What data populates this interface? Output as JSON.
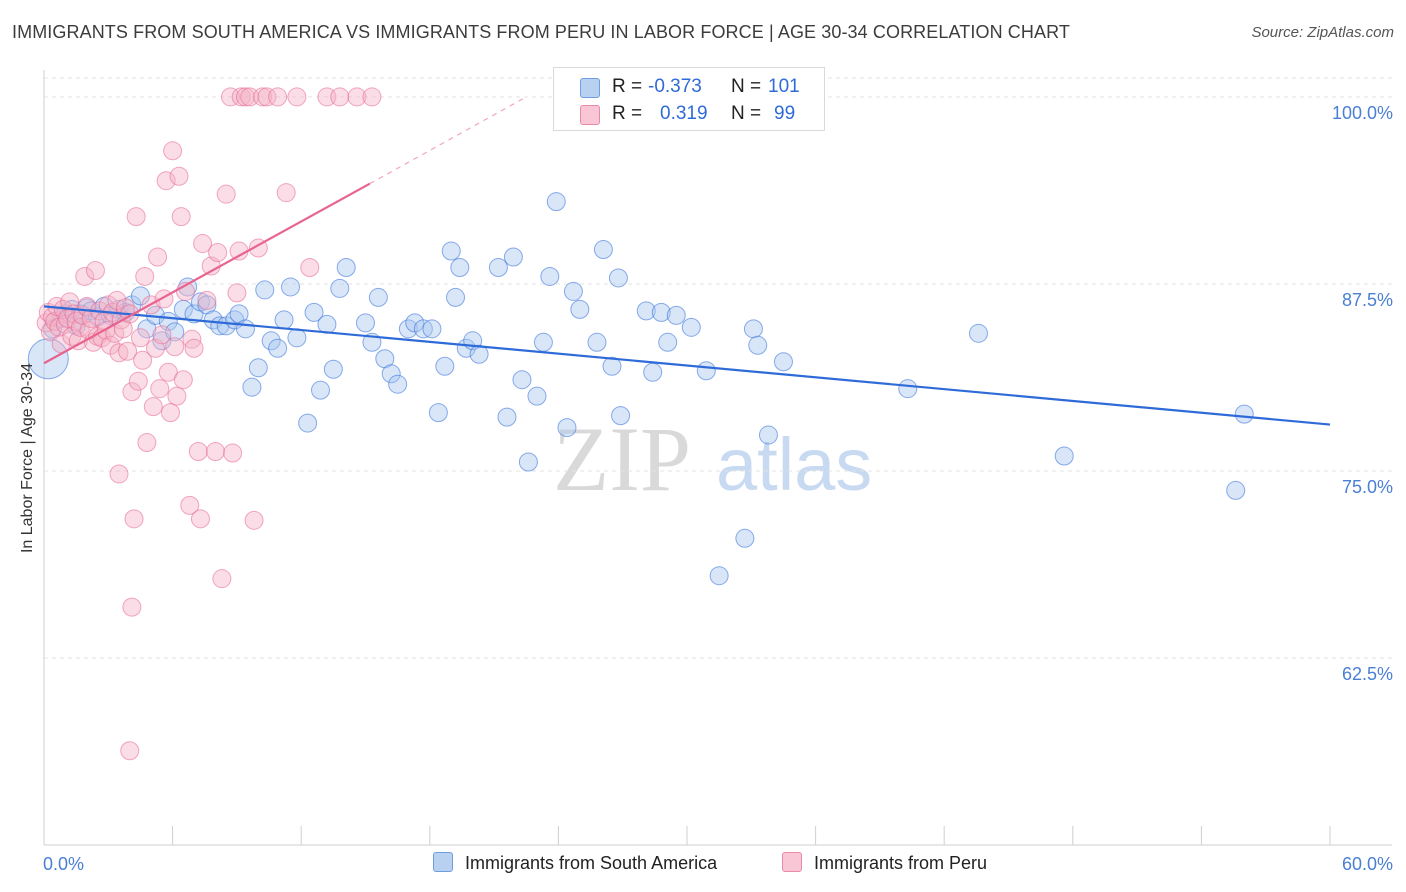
{
  "title": "IMMIGRANTS FROM SOUTH AMERICA VS IMMIGRANTS FROM PERU IN LABOR FORCE | AGE 30-34 CORRELATION CHART",
  "source": "Source: ZipAtlas.com",
  "watermark": {
    "zip": "ZIP",
    "atlas": "atlas"
  },
  "colors": {
    "blue": "#2f6bd8",
    "blue_fill": "#a9c8ef",
    "pink": "#e8648f",
    "pink_fill": "#f4b3c7",
    "axis_label": "#4a7fd4"
  },
  "legend": {
    "rows": [
      {
        "r_label": "R =",
        "r_value": "-0.373",
        "n_label": "N =",
        "n_value": "101"
      },
      {
        "r_label": "R =",
        "r_value": "0.319",
        "n_label": "N =",
        "n_value": "99"
      }
    ]
  },
  "bottom_legend": {
    "series1": "Immigrants from South America",
    "series2": "Immigrants from Peru"
  },
  "chart_data": {
    "type": "scatter",
    "ylabel": "In Labor Force | Age 30-34",
    "xlim": [
      0,
      60
    ],
    "ylim": [
      50,
      101.8
    ],
    "x_tick_labels": [
      "0.0%",
      "60.0%"
    ],
    "y_ticks": [
      62.5,
      75.0,
      87.5,
      100.0
    ],
    "y_tick_labels": [
      "62.5%",
      "75.0%",
      "87.5%",
      "100.0%"
    ],
    "grid": true,
    "legend_position": "top-center",
    "series": [
      {
        "name": "Immigrants from South America",
        "r": -0.373,
        "n": 101,
        "trend": {
          "x": [
            0,
            60
          ],
          "y": [
            86.0,
            78.1
          ]
        },
        "points": [
          [
            0.2,
            82.5
          ],
          [
            0.4,
            84.5
          ],
          [
            0.8,
            85.2
          ],
          [
            1.0,
            85.5
          ],
          [
            1.3,
            85.8
          ],
          [
            1.5,
            84.7
          ],
          [
            1.7,
            85.5
          ],
          [
            2.0,
            85.9
          ],
          [
            2.2,
            85.7
          ],
          [
            2.5,
            85.3
          ],
          [
            2.8,
            86.0
          ],
          [
            3.1,
            85.4
          ],
          [
            3.5,
            85.8
          ],
          [
            3.8,
            85.6
          ],
          [
            4.1,
            86.1
          ],
          [
            4.5,
            86.7
          ],
          [
            4.8,
            84.5
          ],
          [
            5.2,
            85.4
          ],
          [
            5.5,
            83.7
          ],
          [
            5.8,
            85.0
          ],
          [
            6.1,
            84.3
          ],
          [
            6.5,
            85.8
          ],
          [
            6.7,
            87.3
          ],
          [
            7.0,
            85.5
          ],
          [
            7.3,
            86.3
          ],
          [
            7.6,
            86.1
          ],
          [
            7.9,
            85.1
          ],
          [
            8.2,
            84.7
          ],
          [
            8.5,
            84.7
          ],
          [
            8.9,
            85.1
          ],
          [
            9.1,
            85.5
          ],
          [
            9.4,
            84.5
          ],
          [
            9.7,
            80.6
          ],
          [
            10.0,
            81.9
          ],
          [
            10.3,
            87.1
          ],
          [
            10.6,
            83.7
          ],
          [
            10.9,
            83.2
          ],
          [
            11.2,
            85.1
          ],
          [
            11.5,
            87.3
          ],
          [
            11.8,
            83.9
          ],
          [
            12.3,
            78.2
          ],
          [
            12.6,
            85.6
          ],
          [
            12.9,
            80.4
          ],
          [
            13.2,
            84.8
          ],
          [
            13.5,
            81.8
          ],
          [
            13.8,
            87.2
          ],
          [
            14.1,
            88.6
          ],
          [
            15.0,
            84.9
          ],
          [
            15.3,
            83.6
          ],
          [
            15.6,
            86.6
          ],
          [
            15.9,
            82.5
          ],
          [
            16.2,
            81.5
          ],
          [
            16.5,
            80.8
          ],
          [
            17.0,
            84.5
          ],
          [
            17.3,
            84.9
          ],
          [
            17.7,
            84.5
          ],
          [
            18.1,
            84.5
          ],
          [
            18.4,
            78.9
          ],
          [
            18.7,
            82.0
          ],
          [
            19.0,
            89.7
          ],
          [
            19.2,
            86.6
          ],
          [
            19.4,
            88.6
          ],
          [
            19.7,
            83.2
          ],
          [
            20.0,
            83.7
          ],
          [
            20.3,
            82.8
          ],
          [
            21.2,
            88.6
          ],
          [
            21.6,
            78.6
          ],
          [
            21.9,
            89.3
          ],
          [
            22.3,
            81.1
          ],
          [
            22.6,
            75.6
          ],
          [
            23.0,
            80.0
          ],
          [
            23.3,
            83.6
          ],
          [
            23.6,
            88.0
          ],
          [
            23.9,
            93.0
          ],
          [
            24.4,
            77.9
          ],
          [
            24.7,
            87.0
          ],
          [
            25.0,
            85.8
          ],
          [
            25.4,
            100.0
          ],
          [
            25.8,
            83.6
          ],
          [
            26.1,
            89.8
          ],
          [
            26.5,
            82.0
          ],
          [
            26.8,
            87.9
          ],
          [
            26.9,
            78.7
          ],
          [
            28.1,
            85.7
          ],
          [
            28.4,
            81.6
          ],
          [
            28.8,
            85.6
          ],
          [
            29.1,
            83.6
          ],
          [
            29.5,
            85.4
          ],
          [
            30.2,
            84.6
          ],
          [
            30.9,
            81.7
          ],
          [
            31.5,
            68.0
          ],
          [
            32.7,
            70.5
          ],
          [
            33.1,
            84.5
          ],
          [
            33.3,
            83.4
          ],
          [
            33.8,
            77.4
          ],
          [
            34.5,
            82.3
          ],
          [
            40.3,
            80.5
          ],
          [
            43.6,
            84.2
          ],
          [
            47.6,
            76.0
          ],
          [
            55.6,
            73.7
          ],
          [
            56.0,
            78.8
          ]
        ]
      },
      {
        "name": "Immigrants from Peru",
        "r": 0.319,
        "n": 99,
        "trend": {
          "x": [
            0,
            15.2
          ],
          "y": [
            82.2,
            94.2
          ]
        },
        "trend_extension": {
          "x": [
            15.2,
            22.5
          ],
          "y": [
            94.2,
            100.0
          ]
        },
        "points": [
          [
            0.1,
            84.9
          ],
          [
            0.2,
            85.6
          ],
          [
            0.3,
            84.3
          ],
          [
            0.4,
            85.3
          ],
          [
            0.5,
            85.0
          ],
          [
            0.6,
            86.0
          ],
          [
            0.7,
            84.6
          ],
          [
            0.8,
            83.5
          ],
          [
            0.9,
            85.8
          ],
          [
            1.0,
            84.8
          ],
          [
            1.1,
            85.2
          ],
          [
            1.2,
            86.3
          ],
          [
            1.3,
            84.0
          ],
          [
            1.4,
            85.5
          ],
          [
            1.5,
            85.0
          ],
          [
            1.6,
            83.7
          ],
          [
            1.7,
            84.6
          ],
          [
            1.8,
            85.4
          ],
          [
            1.9,
            88.0
          ],
          [
            2.0,
            86.0
          ],
          [
            2.1,
            84.4
          ],
          [
            2.2,
            85.2
          ],
          [
            2.3,
            83.6
          ],
          [
            2.4,
            88.4
          ],
          [
            2.5,
            84.0
          ],
          [
            2.6,
            85.7
          ],
          [
            2.7,
            83.9
          ],
          [
            2.8,
            85.0
          ],
          [
            2.9,
            84.4
          ],
          [
            3.0,
            86.1
          ],
          [
            3.1,
            83.4
          ],
          [
            3.2,
            85.6
          ],
          [
            3.3,
            84.2
          ],
          [
            3.4,
            86.4
          ],
          [
            3.5,
            82.9
          ],
          [
            3.6,
            85.1
          ],
          [
            3.7,
            84.5
          ],
          [
            3.8,
            85.9
          ],
          [
            3.9,
            83.0
          ],
          [
            4.0,
            85.5
          ],
          [
            4.1,
            80.3
          ],
          [
            4.3,
            92.0
          ],
          [
            4.4,
            81.0
          ],
          [
            4.5,
            83.9
          ],
          [
            4.6,
            82.4
          ],
          [
            4.7,
            88.0
          ],
          [
            4.8,
            76.9
          ],
          [
            5.0,
            86.1
          ],
          [
            5.1,
            79.3
          ],
          [
            5.2,
            83.2
          ],
          [
            5.3,
            89.3
          ],
          [
            5.4,
            80.5
          ],
          [
            5.5,
            84.1
          ],
          [
            5.6,
            86.5
          ],
          [
            5.7,
            94.4
          ],
          [
            5.8,
            81.6
          ],
          [
            5.9,
            78.9
          ],
          [
            6.0,
            96.4
          ],
          [
            6.1,
            83.3
          ],
          [
            6.2,
            80.0
          ],
          [
            6.3,
            94.7
          ],
          [
            6.4,
            92.0
          ],
          [
            6.5,
            81.1
          ],
          [
            6.6,
            87.0
          ],
          [
            6.8,
            72.7
          ],
          [
            6.9,
            83.8
          ],
          [
            7.0,
            83.2
          ],
          [
            7.2,
            76.3
          ],
          [
            7.3,
            71.8
          ],
          [
            7.4,
            90.2
          ],
          [
            7.6,
            86.4
          ],
          [
            7.8,
            88.7
          ],
          [
            8.0,
            76.3
          ],
          [
            8.1,
            89.6
          ],
          [
            8.3,
            67.8
          ],
          [
            8.5,
            93.5
          ],
          [
            8.7,
            100.0
          ],
          [
            8.8,
            76.2
          ],
          [
            9.0,
            86.9
          ],
          [
            9.1,
            89.7
          ],
          [
            9.2,
            100.0
          ],
          [
            9.4,
            100.0
          ],
          [
            9.6,
            100.0
          ],
          [
            9.8,
            71.7
          ],
          [
            10.0,
            89.9
          ],
          [
            10.2,
            100.0
          ],
          [
            10.4,
            100.0
          ],
          [
            10.9,
            100.0
          ],
          [
            11.3,
            93.6
          ],
          [
            11.8,
            100.0
          ],
          [
            12.4,
            88.6
          ],
          [
            13.2,
            100.0
          ],
          [
            13.8,
            100.0
          ],
          [
            14.6,
            100.0
          ],
          [
            15.3,
            100.0
          ],
          [
            4.1,
            65.9
          ],
          [
            4.0,
            56.3
          ],
          [
            3.5,
            74.8
          ],
          [
            4.2,
            71.8
          ]
        ]
      }
    ]
  }
}
